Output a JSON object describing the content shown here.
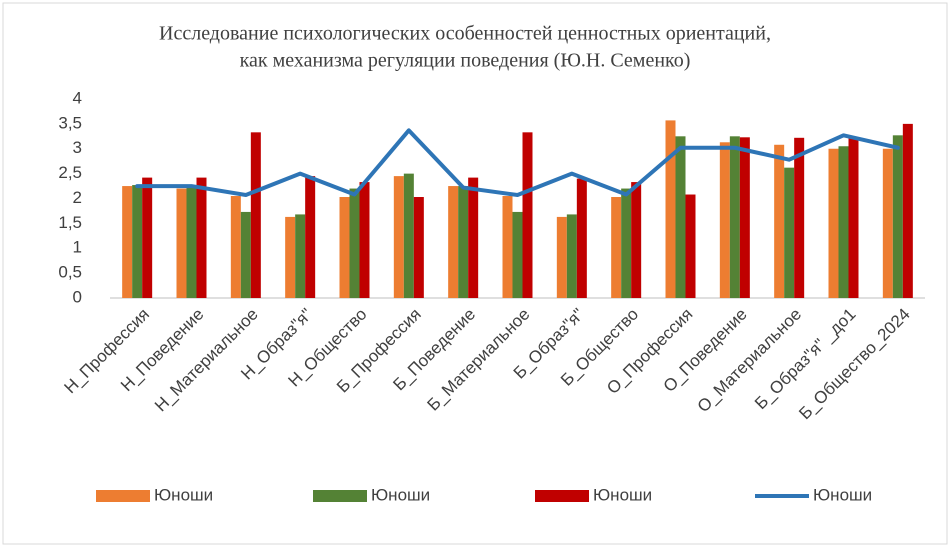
{
  "chart_data": {
    "type": "bar_line",
    "title_lines": [
      "Исследование психологических особенностей ценностных ориентаций,",
      "как механизма регуляции поведения (Ю.Н. Семенко)"
    ],
    "categories": [
      "Н_Профессия",
      "Н_Поведение",
      "Н_Материальное",
      "Н_Образ\"я\"",
      "Н_Общество",
      "Б_Профессия",
      "Б_Поведение",
      "Б_Материальное",
      "Б_Образ\"я\"",
      "Б_Общество",
      "О_Профессия",
      "О_Поведение",
      "О_Материальное",
      "Б_Образ\"я\" _до1",
      "Б_Общество_2024"
    ],
    "series": [
      {
        "name": "Юноши",
        "type": "bar",
        "color": "#ed7d31",
        "values": [
          2.25,
          2.2,
          2.05,
          1.63,
          2.03,
          2.45,
          2.25,
          2.05,
          1.63,
          2.03,
          3.57,
          3.13,
          3.08,
          3.0,
          3.0
        ]
      },
      {
        "name": "Юноши",
        "type": "bar",
        "color": "#548235",
        "values": [
          2.27,
          2.25,
          1.73,
          1.68,
          2.2,
          2.5,
          2.25,
          1.73,
          1.68,
          2.2,
          3.25,
          3.25,
          2.62,
          3.05,
          3.27
        ]
      },
      {
        "name": "Юноши",
        "type": "bar",
        "color": "#c00000",
        "values": [
          2.42,
          2.42,
          3.33,
          2.45,
          2.33,
          2.03,
          2.42,
          3.33,
          2.4,
          2.33,
          2.08,
          3.23,
          3.22,
          3.23,
          3.5
        ]
      },
      {
        "name": "Юноши",
        "type": "line",
        "color": "#2e75b6",
        "values": [
          2.25,
          2.25,
          2.07,
          2.5,
          2.08,
          3.37,
          2.22,
          2.07,
          2.5,
          2.08,
          3.02,
          3.02,
          2.78,
          3.27,
          3.02
        ]
      }
    ],
    "ylim": [
      0,
      4
    ],
    "yticks": [
      0,
      {
        "value": 0.5,
        "label": "0,5"
      },
      1,
      {
        "value": 1.5,
        "label": "1,5"
      },
      2,
      {
        "value": 2.5,
        "label": "2,5"
      },
      3,
      {
        "value": 3.5,
        "label": "3,5"
      },
      4
    ],
    "grid": false,
    "legend": "bottom"
  }
}
